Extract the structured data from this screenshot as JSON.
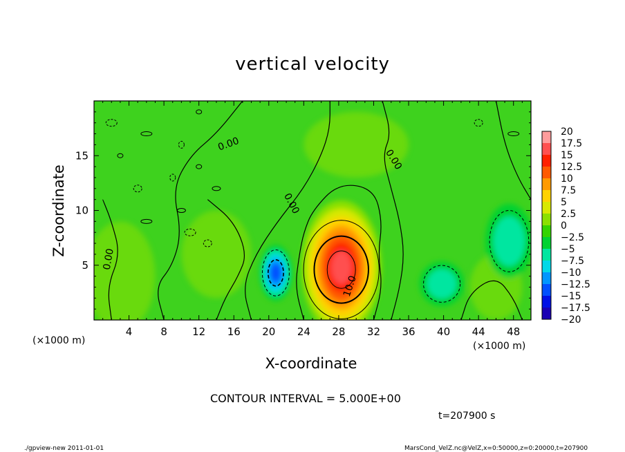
{
  "chart_data": {
    "type": "heatmap",
    "title": "vertical velocity",
    "xlabel": "X-coordinate",
    "ylabel": "Z-coordinate",
    "x_unit_left": "(×1000 m)",
    "x_unit_right": "(×1000 m)",
    "xlim": [
      0,
      50
    ],
    "ylim": [
      0,
      20
    ],
    "x_ticks": [
      4,
      8,
      12,
      16,
      20,
      24,
      28,
      32,
      36,
      40,
      44,
      48
    ],
    "y_ticks": [
      5,
      10,
      15
    ],
    "colorbar": {
      "levels": [
        "20",
        "17.5",
        "15",
        "12.5",
        "10",
        "7.5",
        "5",
        "2.5",
        "0",
        "−2.5",
        "−5",
        "−7.5",
        "−10",
        "−12.5",
        "−15",
        "−17.5",
        "−20"
      ],
      "colors": [
        "#ff9c9c",
        "#ff5050",
        "#ff2000",
        "#ff5a00",
        "#ff9a00",
        "#ffd200",
        "#d8e800",
        "#8ce000",
        "#34d400",
        "#00d232",
        "#00e6a0",
        "#00d8e8",
        "#0096ff",
        "#0050ff",
        "#0010e6",
        "#1a00b4",
        "#7800c8"
      ]
    },
    "features": [
      {
        "type": "updraft",
        "x": 28.3,
        "z": 4.8,
        "peak": 17,
        "sx": 2.7,
        "sz": 3.6
      },
      {
        "type": "downdraft",
        "x": 20.8,
        "z": 4.3,
        "peak": -13,
        "sx": 1.1,
        "sz": 1.5
      },
      {
        "type": "downdraft",
        "x": 39.8,
        "z": 3.3,
        "peak": -5,
        "sx": 1.5,
        "sz": 1.2
      },
      {
        "type": "downdraft",
        "x": 47.5,
        "z": 7.2,
        "peak": -4,
        "sx": 1.6,
        "sz": 2.0
      }
    ],
    "contour_labels": [
      {
        "text": "0.00",
        "x": 15.5,
        "z": 15.8,
        "angle": -20
      },
      {
        "text": "0.00",
        "x": 22.3,
        "z": 10.5,
        "angle": 62
      },
      {
        "text": "0.00",
        "x": 34.0,
        "z": 14.5,
        "angle": 58
      },
      {
        "text": "0.00",
        "x": 2.0,
        "z": 5.5,
        "angle": -80
      },
      {
        "text": "10.0",
        "x": 29.6,
        "z": 3.0,
        "angle": -72
      }
    ]
  },
  "annotations": {
    "contour_interval": "CONTOUR INTERVAL = 5.000E+00",
    "time": "t=207900  s",
    "footer_left": "./gpview-new   2011-01-01",
    "footer_right": "MarsCond_VelZ.nc@VelZ,x=0:50000,z=0:20000,t=207900"
  }
}
